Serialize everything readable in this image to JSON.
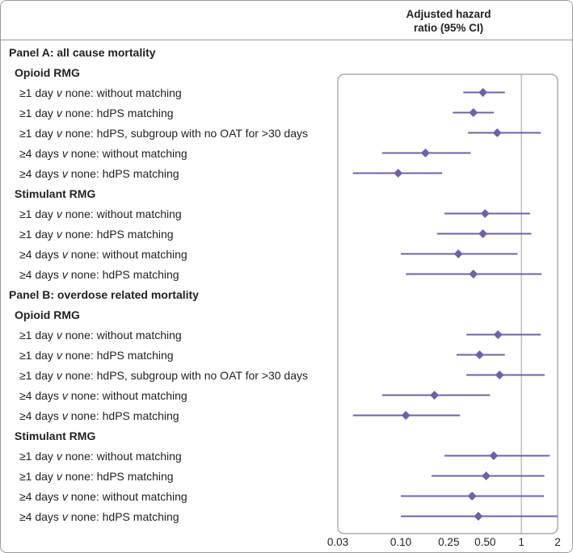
{
  "header": {
    "line1": "Adjusted hazard",
    "line2": "ratio (95% CI)"
  },
  "chart_data": {
    "type": "forest",
    "title": "",
    "xlabel": "Adjusted hazard ratio (95% CI)",
    "xscale": "log",
    "xlim": [
      0.03,
      2
    ],
    "reference_line": 1,
    "ticks": [
      {
        "value": 0.03,
        "label": "0.03"
      },
      {
        "value": 0.1,
        "label": "0.10"
      },
      {
        "value": 0.25,
        "label": "0.25"
      },
      {
        "value": 0.5,
        "label": "0.50"
      },
      {
        "value": 1,
        "label": "1"
      },
      {
        "value": 2,
        "label": "2"
      }
    ],
    "marker_color": "#7060a8",
    "rows": [
      {
        "kind": "panel",
        "label": "Panel A: all cause mortality"
      },
      {
        "kind": "group",
        "label": "Opioid RMG"
      },
      {
        "kind": "item",
        "pre": "≥1 day ",
        "v": "v",
        "post": " none: without matching",
        "hr": 0.48,
        "lo": 0.33,
        "hi": 0.73
      },
      {
        "kind": "item",
        "pre": "≥1 day ",
        "v": "v",
        "post": " none: hdPS matching",
        "hr": 0.4,
        "lo": 0.27,
        "hi": 0.59
      },
      {
        "kind": "item",
        "pre": "≥1 day ",
        "v": "v",
        "post": " none: hdPS, subgroup with no OAT for >30 days",
        "hr": 0.63,
        "lo": 0.36,
        "hi": 1.45
      },
      {
        "kind": "item",
        "pre": "≥4 days ",
        "v": "v",
        "post": " none: without matching",
        "hr": 0.16,
        "lo": 0.07,
        "hi": 0.38
      },
      {
        "kind": "item",
        "pre": "≥4 days ",
        "v": "v",
        "post": " none: hdPS matching",
        "hr": 0.095,
        "lo": 0.04,
        "hi": 0.22
      },
      {
        "kind": "group",
        "label": "Stimulant RMG"
      },
      {
        "kind": "item",
        "pre": "≥1 day ",
        "v": "v",
        "post": " none: without matching",
        "hr": 0.5,
        "lo": 0.23,
        "hi": 1.18
      },
      {
        "kind": "item",
        "pre": "≥1 day ",
        "v": "v",
        "post": " none: hdPS matching",
        "hr": 0.48,
        "lo": 0.2,
        "hi": 1.21
      },
      {
        "kind": "item",
        "pre": "≥4 days ",
        "v": "v",
        "post": " none: without matching",
        "hr": 0.3,
        "lo": 0.1,
        "hi": 0.93
      },
      {
        "kind": "item",
        "pre": "≥4 days ",
        "v": "v",
        "post": " none: hdPS matching",
        "hr": 0.4,
        "lo": 0.11,
        "hi": 1.47
      },
      {
        "kind": "panel",
        "label": "Panel B: overdose related mortality"
      },
      {
        "kind": "group",
        "label": "Opioid RMG"
      },
      {
        "kind": "item",
        "pre": "≥1 day ",
        "v": "v",
        "post": " none: without matching",
        "hr": 0.64,
        "lo": 0.35,
        "hi": 1.45
      },
      {
        "kind": "item",
        "pre": "≥1 day ",
        "v": "v",
        "post": " none: hdPS matching",
        "hr": 0.45,
        "lo": 0.29,
        "hi": 0.73
      },
      {
        "kind": "item",
        "pre": "≥1 day ",
        "v": "v",
        "post": " none: hdPS, subgroup with no OAT for >30 days",
        "hr": 0.66,
        "lo": 0.35,
        "hi": 1.56
      },
      {
        "kind": "item",
        "pre": "≥4 days ",
        "v": "v",
        "post": " none: without matching",
        "hr": 0.19,
        "lo": 0.07,
        "hi": 0.55
      },
      {
        "kind": "item",
        "pre": "≥4 days ",
        "v": "v",
        "post": " none: hdPS matching",
        "hr": 0.11,
        "lo": 0.04,
        "hi": 0.31
      },
      {
        "kind": "group",
        "label": "Stimulant RMG"
      },
      {
        "kind": "item",
        "pre": "≥1 day ",
        "v": "v",
        "post": " none: without matching",
        "hr": 0.59,
        "lo": 0.23,
        "hi": 1.72
      },
      {
        "kind": "item",
        "pre": "≥1 day ",
        "v": "v",
        "post": " none: hdPS matching",
        "hr": 0.51,
        "lo": 0.18,
        "hi": 1.55
      },
      {
        "kind": "item",
        "pre": "≥4 days ",
        "v": "v",
        "post": " none: without matching",
        "hr": 0.39,
        "lo": 0.1,
        "hi": 1.54
      },
      {
        "kind": "item",
        "pre": "≥4 days ",
        "v": "v",
        "post": " none: hdPS matching",
        "hr": 0.44,
        "lo": 0.1,
        "hi": 2.0
      }
    ]
  }
}
